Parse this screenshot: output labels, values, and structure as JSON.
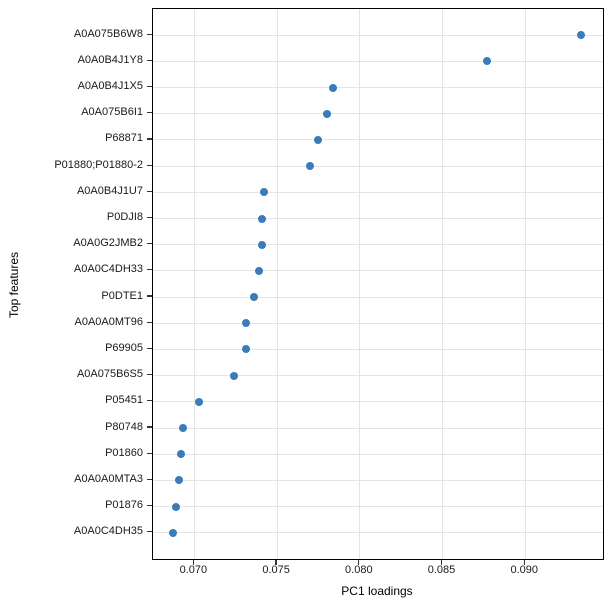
{
  "chart_data": {
    "type": "scatter",
    "variant": "horizontal-dot-plot",
    "title": "",
    "xlabel": "PC1 loadings",
    "ylabel": "Top features",
    "categories": [
      "A0A075B6W8",
      "A0A0B4J1Y8",
      "A0A0B4J1X5",
      "A0A075B6I1",
      "P68871",
      "P01880;P01880-2",
      "A0A0B4J1U7",
      "P0DJI8",
      "A0A0G2JMB2",
      "A0A0C4DH33",
      "P0DTE1",
      "A0A0A0MT96",
      "P69905",
      "A0A075B6S5",
      "P05451",
      "P80748",
      "P01860",
      "A0A0A0MTA3",
      "P01876",
      "A0A0C4DH35"
    ],
    "values": [
      0.0934,
      0.0877,
      0.0784,
      0.078,
      0.0775,
      0.077,
      0.0742,
      0.0741,
      0.0741,
      0.0739,
      0.0736,
      0.0731,
      0.0731,
      0.0724,
      0.0703,
      0.0693,
      0.0692,
      0.0691,
      0.0689,
      0.0687
    ],
    "xlim": [
      0.0675,
      0.0947
    ],
    "xticks": [
      0.07,
      0.075,
      0.08,
      0.085,
      0.09
    ],
    "xtick_labels": [
      "0.070",
      "0.075",
      "0.080",
      "0.085",
      "0.090"
    ],
    "grid": true,
    "legend_position": "none",
    "colors": {
      "dot": "#3a7cb8",
      "grid": "#e5e5e5",
      "panel_border": "#000000",
      "tick": "#333333",
      "text": "#1a1a1a"
    }
  }
}
